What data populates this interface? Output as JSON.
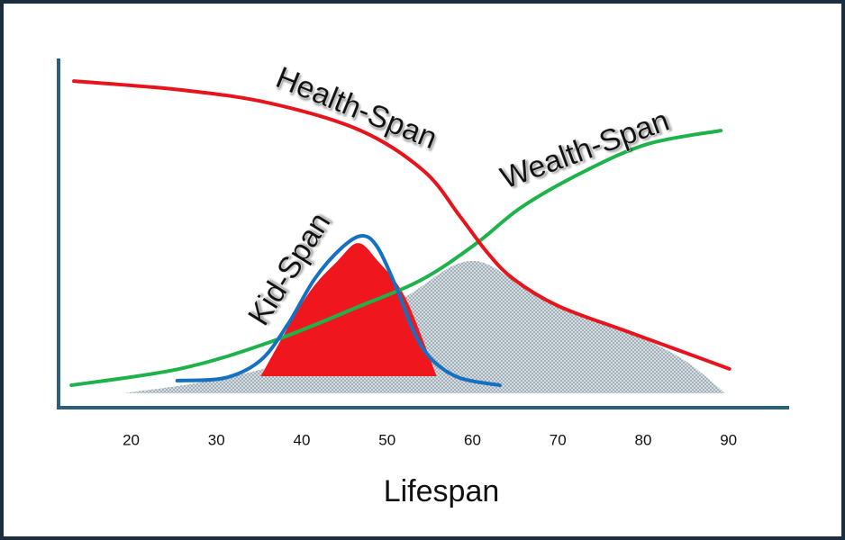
{
  "chart_data": {
    "type": "line",
    "xlabel": "Lifespan",
    "xlim": [
      11.5,
      97
    ],
    "xticks": [
      20,
      30,
      40,
      50,
      60,
      70,
      80,
      90
    ],
    "ylim": [
      0,
      100
    ],
    "series": [
      {
        "style": "area",
        "color": "#b7c4cc",
        "x": [
          19.2,
          31.0,
          41.5,
          52.1,
          60.0,
          67.9,
          78.5,
          84.8,
          89.6
        ],
        "values": [
          3.9,
          8.3,
          16.0,
          31.5,
          41.9,
          31.5,
          21.2,
          13.4,
          3.9
        ]
      },
      {
        "style": "area",
        "color": "#f0161e",
        "x": [
          35.2,
          40.5,
          44.2,
          46.6,
          48.9,
          52.1,
          55.8
        ],
        "values": [
          8.8,
          31.5,
          41.9,
          47.0,
          41.9,
          31.5,
          8.8
        ]
      },
      {
        "name": "Wealth-Span",
        "style": "line",
        "color": "#1db34a",
        "x": [
          13.0,
          25.7,
          36.3,
          46.8,
          54.2,
          60.5,
          65.8,
          73.2,
          80.6,
          89.1
        ],
        "values": [
          6.2,
          10.9,
          18.6,
          28.9,
          36.7,
          47.0,
          57.4,
          67.7,
          75.5,
          79.3
        ]
      },
      {
        "name": "Health-Span",
        "style": "line",
        "color": "#e8141c",
        "x": [
          13.3,
          25.8,
          36.4,
          46.9,
          54.3,
          58.5,
          61.7,
          64.8,
          70.1,
          78.6,
          90.1
        ],
        "values": [
          93.5,
          91.0,
          87.1,
          79.3,
          67.7,
          54.8,
          44.4,
          36.7,
          28.9,
          21.2,
          10.9
        ]
      },
      {
        "name": "Kid-Span",
        "style": "line",
        "color": "#1470c0",
        "x": [
          25.4,
          31.0,
          35.2,
          38.4,
          41.5,
          44.7,
          47.1,
          48.9,
          51.1,
          53.2,
          55.3,
          58.5,
          63.2
        ],
        "values": [
          7.5,
          8.3,
          13.4,
          23.8,
          36.7,
          45.7,
          49.1,
          45.7,
          34.1,
          21.2,
          13.4,
          8.3,
          6.2
        ]
      }
    ]
  }
}
